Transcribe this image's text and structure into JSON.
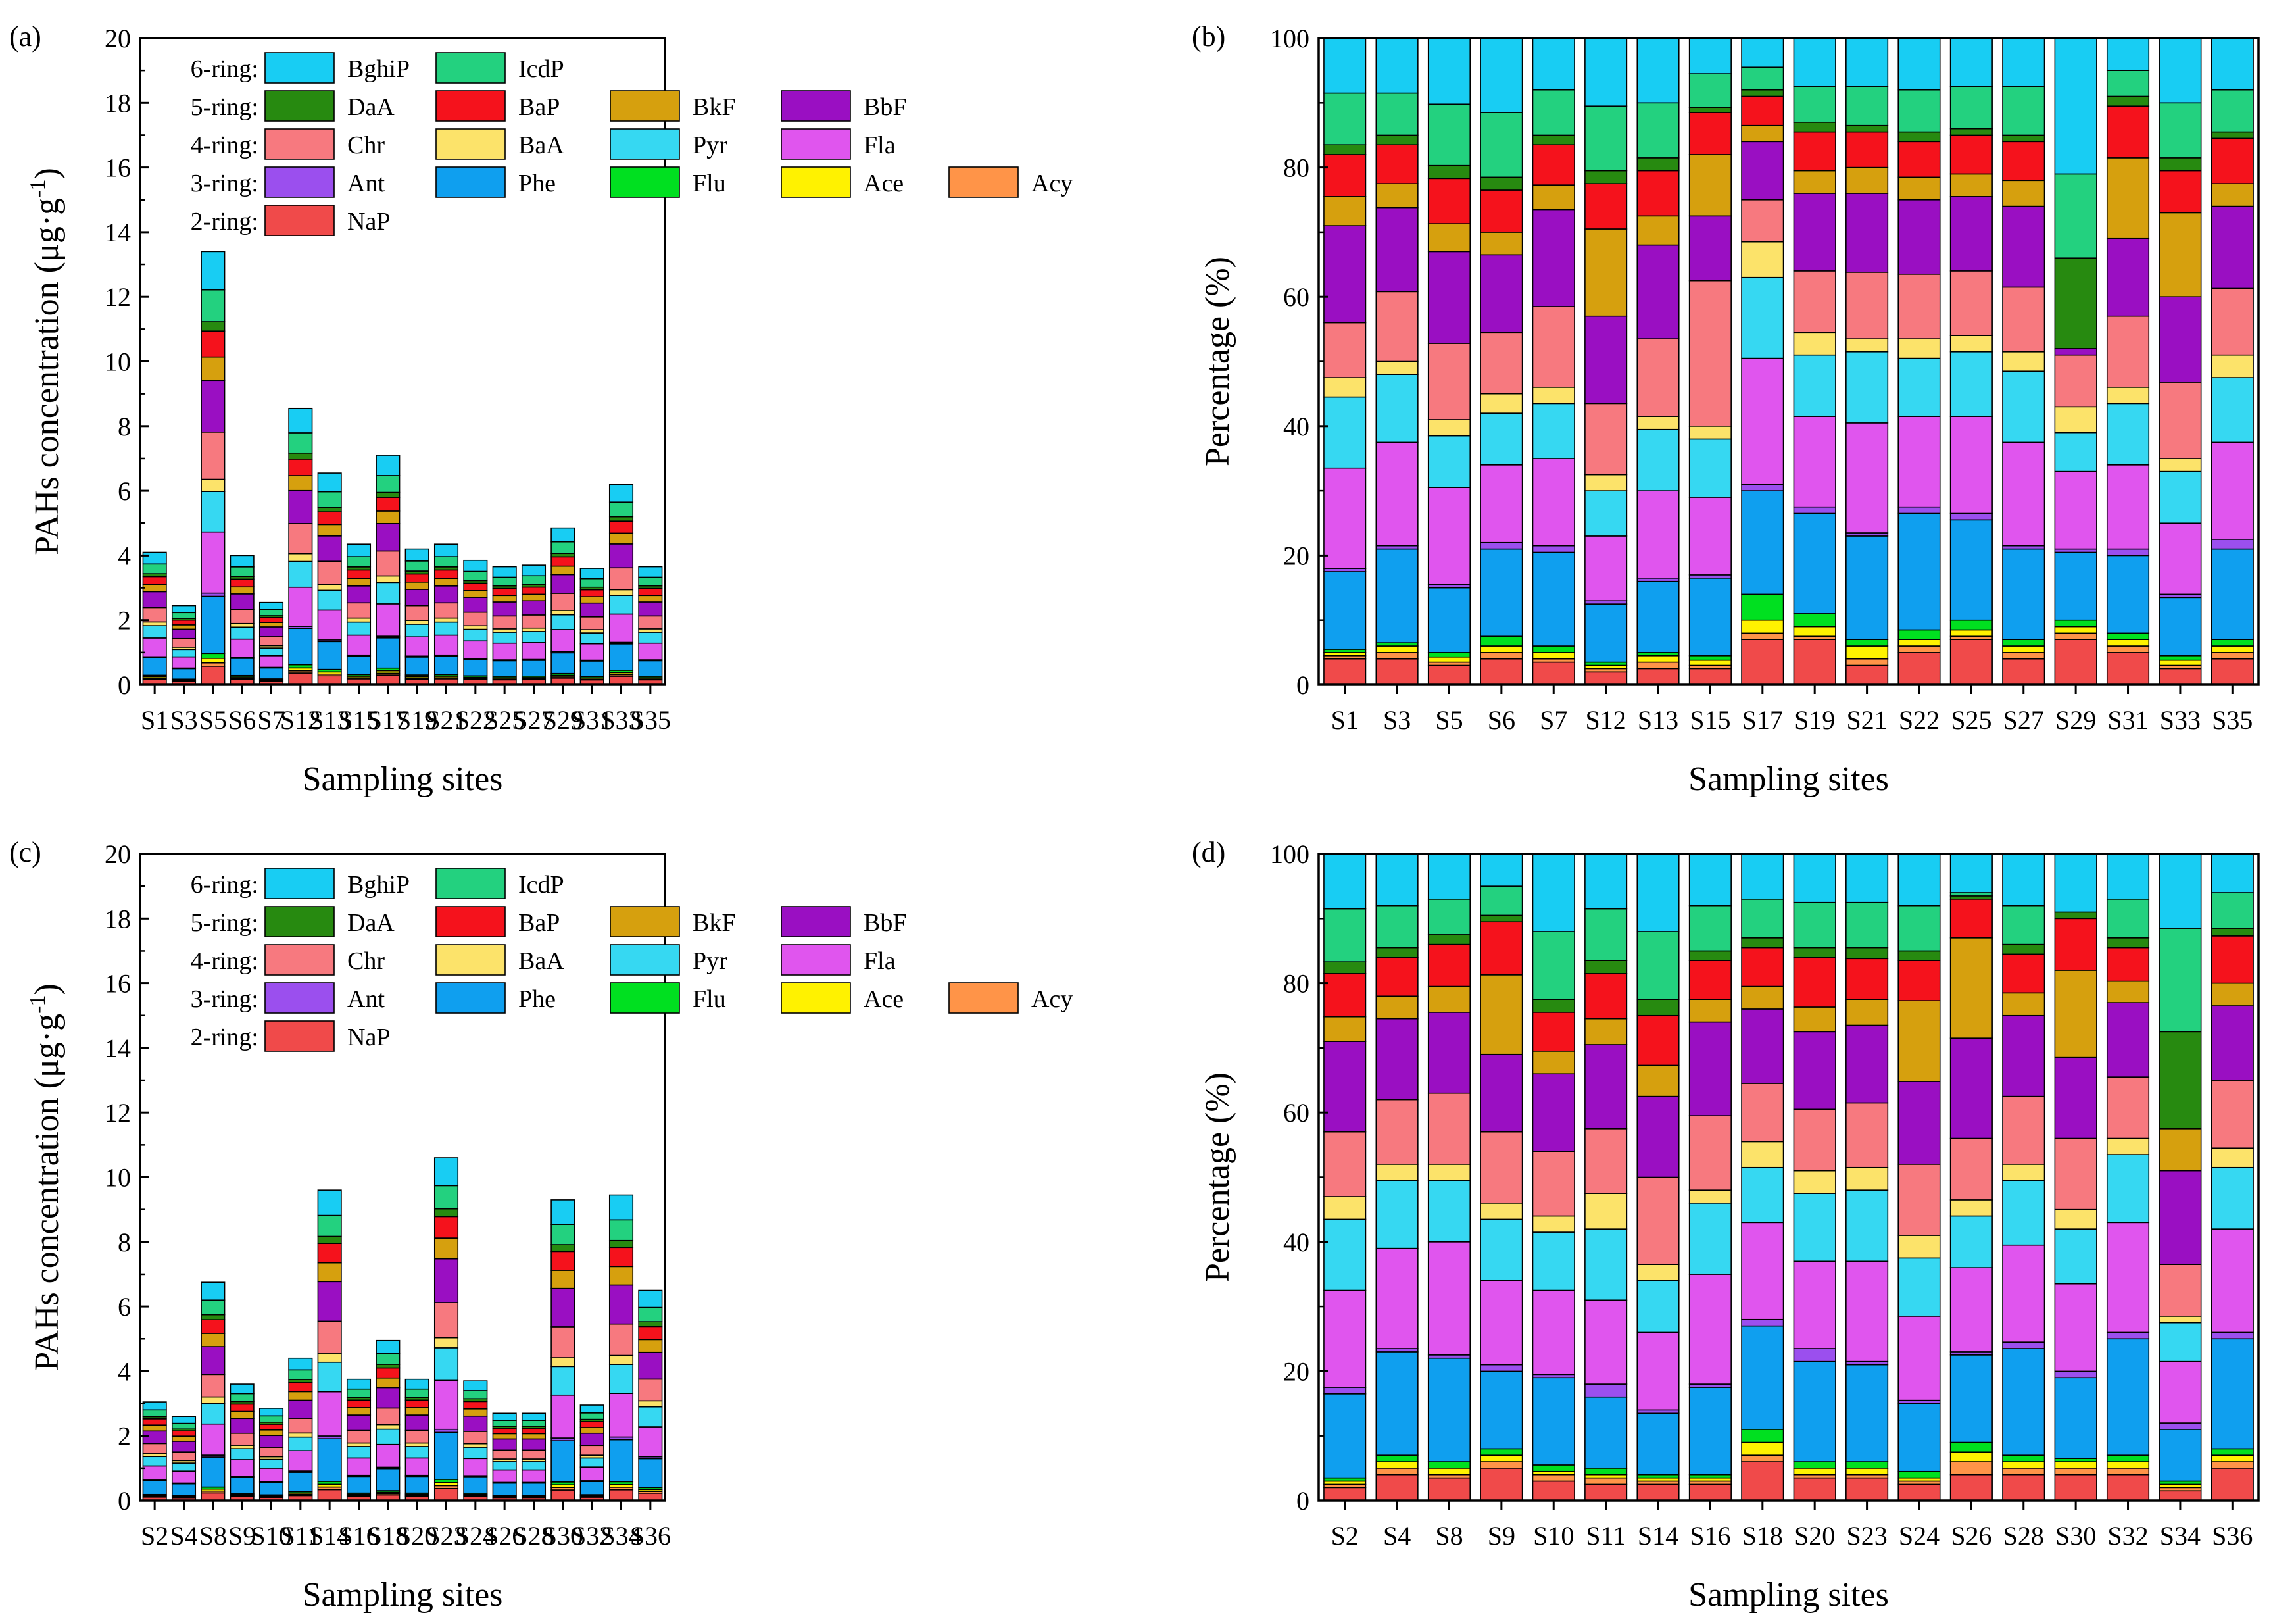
{
  "ring_groups": [
    {
      "label": "6-ring:",
      "species": [
        "BghiP",
        "IcdP"
      ]
    },
    {
      "label": "5-ring:",
      "species": [
        "DaA",
        "BaP",
        "BkF",
        "BbF"
      ]
    },
    {
      "label": "4-ring:",
      "species": [
        "Chr",
        "BaA",
        "Pyr",
        "Fla"
      ]
    },
    {
      "label": "3-ring:",
      "species": [
        "Ant",
        "Phe",
        "Flu",
        "Ace",
        "Acy"
      ]
    },
    {
      "label": "2-ring:",
      "species": [
        "NaP"
      ]
    }
  ],
  "colors": {
    "NaP": "#f04a4a",
    "Acy": "#ff9448",
    "Ace": "#fff200",
    "Flu": "#00e020",
    "Phe": "#0f9fef",
    "Ant": "#9b4fee",
    "Fla": "#e055ee",
    "Pyr": "#36d8f2",
    "BaA": "#fce36a",
    "Chr": "#f7797f",
    "BbF": "#9a0fc2",
    "BkF": "#d6a00e",
    "BaP": "#f5121c",
    "DaA": "#278a10",
    "IcdP": "#23d17f",
    "BghiP": "#18cdf3"
  },
  "stack_order": [
    "NaP",
    "Acy",
    "Ace",
    "Flu",
    "Phe",
    "Ant",
    "Fla",
    "Pyr",
    "BaA",
    "Chr",
    "BbF",
    "BkF",
    "BaP",
    "DaA",
    "IcdP",
    "BghiP"
  ],
  "chart_data": [
    {
      "panel": "(a)",
      "type": "bar",
      "stacked": true,
      "xlabel": "Sampling sites",
      "ylabel_base": "PAHs concentration (μg·g",
      "ylabel_sup": "-1",
      "ylabel_end": ")",
      "ylim": [
        0,
        20
      ],
      "yticks": [
        "0",
        "2",
        "4",
        "6",
        "8",
        "10",
        "12",
        "14",
        "16",
        "18",
        "20"
      ],
      "categories": [
        "S1",
        "S3",
        "S5",
        "S6",
        "S7",
        "S12",
        "S13",
        "S15",
        "S17",
        "S19",
        "S21",
        "S22",
        "S25",
        "S27",
        "S29",
        "S31",
        "S33",
        "S35"
      ],
      "totals": [
        4.1,
        2.45,
        13.4,
        4.0,
        2.55,
        8.55,
        6.55,
        4.35,
        7.1,
        4.2,
        4.35,
        3.85,
        3.65,
        3.7,
        4.85,
        3.6,
        6.2,
        3.65
      ]
    },
    {
      "panel": "(b)",
      "type": "bar",
      "stacked": true,
      "normalized": true,
      "xlabel": "Sampling sites",
      "ylabel": "Percentage (%)",
      "ylim": [
        0,
        100
      ],
      "yticks": [
        "0",
        "20",
        "40",
        "60",
        "80",
        "100"
      ],
      "categories": [
        "S1",
        "S3",
        "S5",
        "S6",
        "S7",
        "S12",
        "S13",
        "S15",
        "S17",
        "S19",
        "S21",
        "S22",
        "S25",
        "S27",
        "S29",
        "S31",
        "S33",
        "S35"
      ],
      "cumulative_percent_tops": [
        [
          4,
          4.5,
          5,
          5.5,
          17.5,
          18,
          33.5,
          44.5,
          47.5,
          56,
          71,
          75.5,
          82,
          83.5,
          91.5,
          100
        ],
        [
          4,
          5,
          6,
          6.5,
          21,
          21.5,
          37.5,
          48,
          50,
          60.8,
          73.8,
          77.5,
          83.5,
          85,
          91.5,
          100
        ],
        [
          3,
          3.5,
          4.3,
          5,
          15,
          15.5,
          30.5,
          38.5,
          41,
          52.8,
          67,
          71.3,
          78.3,
          80.3,
          89.8,
          100
        ],
        [
          4,
          5,
          6,
          7.5,
          21,
          22,
          34,
          42,
          45,
          54.5,
          66.5,
          70,
          76.5,
          78.5,
          88.5,
          100
        ],
        [
          3.5,
          4,
          5,
          6,
          20.5,
          21.5,
          35,
          43.5,
          46,
          58.5,
          73.5,
          77.3,
          83.5,
          85,
          92,
          100
        ],
        [
          2,
          2.5,
          3,
          3.5,
          12.5,
          13,
          23,
          30,
          32.5,
          43.5,
          57,
          70.5,
          77.5,
          79.5,
          89.5,
          100
        ],
        [
          2.5,
          3.5,
          4.5,
          5,
          16,
          16.5,
          30,
          39.5,
          41.5,
          53.5,
          68,
          72.5,
          79.5,
          81.5,
          90,
          100
        ],
        [
          2.5,
          3,
          3.8,
          4.5,
          16.5,
          17,
          29,
          38,
          40,
          62.5,
          72.5,
          82,
          88.5,
          89.3,
          94.5,
          100
        ],
        [
          7,
          8,
          10,
          14,
          30,
          31,
          50.5,
          63,
          68.5,
          75,
          84,
          86.5,
          91,
          92,
          95.5,
          100
        ],
        [
          7,
          7.5,
          9,
          11,
          26.5,
          27.5,
          41.5,
          51,
          54.5,
          64,
          76,
          79.5,
          85.5,
          87,
          92.5,
          100
        ],
        [
          3,
          4,
          6,
          7,
          23,
          23.5,
          40.5,
          51.5,
          53.5,
          63.8,
          76,
          80,
          85.5,
          86.5,
          92.5,
          100
        ],
        [
          5,
          6,
          7,
          8.5,
          26.5,
          27.5,
          41.5,
          50.5,
          53.5,
          63.5,
          75,
          78.5,
          84,
          85.5,
          92,
          100
        ],
        [
          7,
          7.5,
          8.5,
          10,
          25.5,
          26.5,
          41.5,
          51.5,
          54,
          64,
          75.5,
          79,
          85,
          86,
          92.5,
          100
        ],
        [
          4,
          5,
          6,
          7,
          21,
          21.5,
          37.5,
          48.5,
          51.5,
          61.5,
          74,
          78,
          84,
          85,
          92.5,
          100
        ],
        [
          7,
          8,
          9,
          10,
          20.5,
          21,
          33,
          39,
          43,
          51,
          52,
          52,
          52,
          66,
          79,
          100
        ],
        [
          5,
          6,
          7,
          8,
          20,
          21,
          34,
          43.5,
          46,
          57,
          69,
          81.5,
          89.5,
          91,
          95,
          100
        ],
        [
          2.5,
          3,
          3.8,
          4.5,
          13.5,
          14,
          25,
          33,
          35,
          46.8,
          60,
          73,
          79.5,
          81.5,
          90,
          100
        ],
        [
          4,
          5,
          6,
          7,
          21,
          22.5,
          37.5,
          47.5,
          51,
          61.3,
          74,
          77.5,
          84.5,
          85.5,
          92,
          100
        ]
      ]
    },
    {
      "panel": "(c)",
      "type": "bar",
      "stacked": true,
      "xlabel": "Sampling sites",
      "ylabel_base": "PAHs concentration (μg·g",
      "ylabel_sup": "-1",
      "ylabel_end": ")",
      "ylim": [
        0,
        20
      ],
      "yticks": [
        "0",
        "2",
        "4",
        "6",
        "8",
        "10",
        "12",
        "14",
        "16",
        "18",
        "20"
      ],
      "categories": [
        "S2",
        "S4",
        "S8",
        "S9",
        "S10",
        "S11",
        "S14",
        "S16",
        "S18",
        "S20",
        "S23",
        "S24",
        "S26",
        "S28",
        "S30",
        "S32",
        "S34",
        "S36"
      ],
      "totals": [
        3.05,
        2.6,
        6.75,
        3.6,
        2.85,
        4.4,
        9.6,
        3.75,
        4.95,
        3.75,
        10.6,
        3.7,
        2.7,
        2.7,
        9.3,
        2.95,
        9.45,
        6.5
      ]
    },
    {
      "panel": "(d)",
      "type": "bar",
      "stacked": true,
      "normalized": true,
      "xlabel": "Sampling sites",
      "ylabel": "Percentage (%)",
      "ylim": [
        0,
        100
      ],
      "yticks": [
        "0",
        "20",
        "40",
        "60",
        "80",
        "100"
      ],
      "categories": [
        "S2",
        "S4",
        "S8",
        "S9",
        "S10",
        "S11",
        "S14",
        "S16",
        "S18",
        "S20",
        "S23",
        "S24",
        "S26",
        "S28",
        "S30",
        "S32",
        "S34",
        "S36"
      ],
      "cumulative_percent_tops": [
        [
          2,
          2.5,
          3,
          3.5,
          16.5,
          17.5,
          32.5,
          43.5,
          47,
          57,
          71,
          74.8,
          81.5,
          83.3,
          91.5,
          100
        ],
        [
          4,
          5,
          6,
          7,
          23,
          23.5,
          39,
          49.5,
          52,
          62,
          74.5,
          78,
          84,
          85.5,
          92,
          100
        ],
        [
          3.5,
          4,
          5,
          6,
          22,
          22.5,
          40,
          49.5,
          52,
          63,
          75.5,
          79.5,
          86,
          87.5,
          93,
          100
        ],
        [
          5,
          6,
          7,
          8,
          20,
          21,
          34,
          43.5,
          46,
          57,
          69,
          81.3,
          89.5,
          90.5,
          95,
          100
        ],
        [
          3,
          4,
          4.5,
          5.5,
          19,
          19.5,
          32.5,
          41.5,
          44,
          54,
          66,
          69.5,
          75.5,
          77.5,
          88,
          100
        ],
        [
          2.5,
          3.5,
          4,
          5,
          16,
          18,
          31,
          42,
          47.5,
          57.5,
          70.5,
          74.5,
          81.5,
          83.5,
          91.5,
          100
        ],
        [
          2.5,
          3,
          3.5,
          4,
          13.5,
          14,
          26,
          34,
          36.5,
          50,
          62.5,
          67.3,
          75,
          77.5,
          88,
          100
        ],
        [
          2.5,
          3,
          3.5,
          4,
          17.5,
          18,
          35,
          46,
          48,
          59.5,
          74,
          77.5,
          83.5,
          85,
          92,
          100
        ],
        [
          6,
          7,
          9,
          11,
          27,
          28,
          43,
          51.5,
          55.5,
          64.5,
          76,
          79.5,
          85.5,
          87,
          93,
          100
        ],
        [
          3.5,
          4,
          5,
          6,
          21.5,
          23.5,
          37,
          47.5,
          51,
          60.5,
          72.5,
          76.3,
          84,
          85.5,
          92.5,
          100
        ],
        [
          3.5,
          4,
          5,
          6,
          21,
          21.5,
          37,
          48,
          51.5,
          61.5,
          73.5,
          77.5,
          83.8,
          85.5,
          92.5,
          100
        ],
        [
          2.5,
          3,
          3.5,
          4.5,
          15,
          15.5,
          28.5,
          37.5,
          41,
          52,
          64.8,
          77.3,
          83.5,
          85,
          92,
          100
        ],
        [
          4,
          6,
          7.5,
          9,
          22.5,
          23,
          36,
          44,
          46.5,
          56,
          71.5,
          87,
          93,
          93.5,
          94,
          100
        ],
        [
          4,
          5,
          6,
          7,
          23.5,
          24.5,
          39.5,
          49.5,
          52,
          62.5,
          75,
          78.5,
          84.5,
          86,
          92,
          100
        ],
        [
          4,
          5,
          6,
          6.5,
          19,
          20,
          33.5,
          42,
          45,
          56,
          68.5,
          82,
          90,
          91,
          91,
          100
        ],
        [
          4,
          5,
          6,
          7,
          25,
          26,
          43,
          53.5,
          56,
          65.5,
          77,
          80.3,
          85.5,
          87,
          93,
          100
        ],
        [
          1.5,
          2,
          2.5,
          3,
          11,
          12,
          21.5,
          27.5,
          28.5,
          36.5,
          51,
          57.5,
          57.5,
          72.5,
          88.5,
          100
        ],
        [
          5,
          6,
          7,
          8,
          25,
          26,
          42,
          51.5,
          54.5,
          65,
          76.5,
          80,
          87.3,
          88.5,
          94,
          100
        ]
      ]
    }
  ]
}
